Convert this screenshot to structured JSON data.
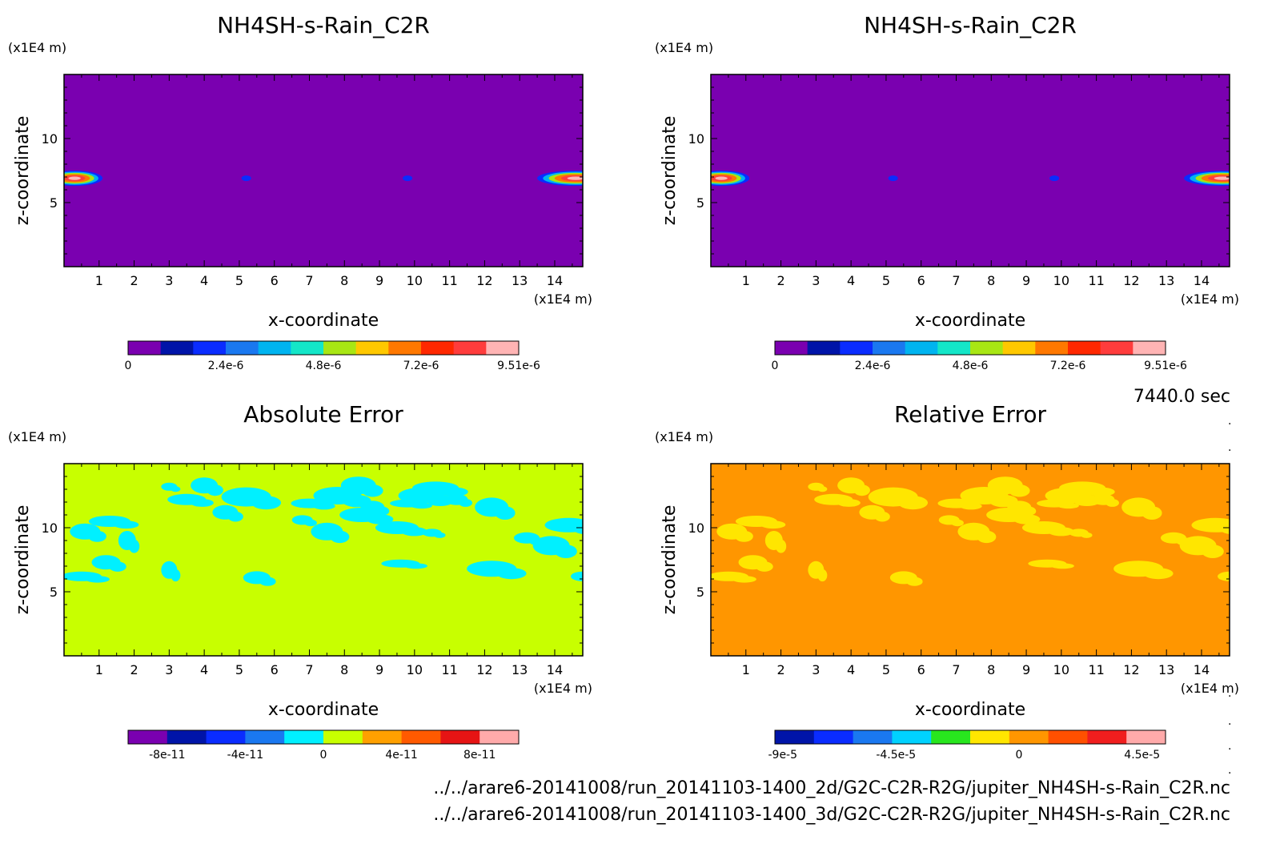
{
  "time_label": "7440.0 sec",
  "file_lines": [
    "../../arare6-20141008/run_20141103-1400_2d/G2C-C2R-R2G/jupiter_NH4SH-s-Rain_C2R.nc",
    "../../arare6-20141008/run_20141103-1400_3d/G2C-C2R-R2G/jupiter_NH4SH-s-Rain_C2R.nc"
  ],
  "chart_data": [
    {
      "type": "heatmap",
      "id": "p1",
      "title": "NH4SH-s-Rain_C2R",
      "xlabel": "x-coordinate",
      "ylabel": "z-coordinate",
      "x_unit": "(x1E4 m)",
      "y_unit": "(x1E4 m)",
      "xlim": [
        0,
        14.8
      ],
      "ylim": [
        0,
        15
      ],
      "x_ticks": [
        "1",
        "2",
        "3",
        "4",
        "5",
        "6",
        "7",
        "8",
        "9",
        "10",
        "11",
        "12",
        "13",
        "14"
      ],
      "y_ticks": [
        "5",
        "10"
      ],
      "background": "#7a00b0",
      "features": [
        {
          "kind": "blob",
          "x": 0.3,
          "y": 6.9,
          "rx": 0.8,
          "ry": 0.6,
          "level": "high"
        },
        {
          "kind": "blob",
          "x": 14.6,
          "y": 6.9,
          "rx": 1.1,
          "ry": 0.6,
          "level": "high"
        },
        {
          "kind": "dot",
          "x": 5.2,
          "y": 6.9
        },
        {
          "kind": "dot",
          "x": 9.8,
          "y": 6.9
        }
      ],
      "colorbar": {
        "colors": [
          "#7a00b0",
          "#0014a8",
          "#0a2cff",
          "#1a78f0",
          "#00b4f0",
          "#14e6c8",
          "#a8e614",
          "#ffc800",
          "#ff7800",
          "#ff2800",
          "#ff3c3c",
          "#ffb4b4"
        ],
        "labels": [
          "0",
          "2.4e-6",
          "4.8e-6",
          "7.2e-6",
          "9.51e-6"
        ]
      }
    },
    {
      "type": "heatmap",
      "id": "p2",
      "title": "NH4SH-s-Rain_C2R",
      "xlabel": "x-coordinate",
      "ylabel": "z-coordinate",
      "x_unit": "(x1E4 m)",
      "y_unit": "(x1E4 m)",
      "xlim": [
        0,
        14.8
      ],
      "ylim": [
        0,
        15
      ],
      "x_ticks": [
        "1",
        "2",
        "3",
        "4",
        "5",
        "6",
        "7",
        "8",
        "9",
        "10",
        "11",
        "12",
        "13",
        "14"
      ],
      "y_ticks": [
        "5",
        "10"
      ],
      "background": "#7a00b0",
      "features": [
        {
          "kind": "blob",
          "x": 0.3,
          "y": 6.9,
          "rx": 0.8,
          "ry": 0.6,
          "level": "high"
        },
        {
          "kind": "blob",
          "x": 14.6,
          "y": 6.9,
          "rx": 1.1,
          "ry": 0.6,
          "level": "high"
        },
        {
          "kind": "dot",
          "x": 5.2,
          "y": 6.9
        },
        {
          "kind": "dot",
          "x": 9.8,
          "y": 6.9
        }
      ],
      "colorbar": {
        "colors": [
          "#7a00b0",
          "#0014a8",
          "#0a2cff",
          "#1a78f0",
          "#00b4f0",
          "#14e6c8",
          "#a8e614",
          "#ffc800",
          "#ff7800",
          "#ff2800",
          "#ff3c3c",
          "#ffb4b4"
        ],
        "labels": [
          "0",
          "2.4e-6",
          "4.8e-6",
          "7.2e-6",
          "9.51e-6"
        ]
      }
    },
    {
      "type": "heatmap",
      "id": "p3",
      "title": "Absolute Error",
      "xlabel": "x-coordinate",
      "ylabel": "z-coordinate",
      "x_unit": "(x1E4 m)",
      "y_unit": "(x1E4 m)",
      "xlim": [
        0,
        14.8
      ],
      "ylim": [
        0,
        15
      ],
      "x_ticks": [
        "1",
        "2",
        "3",
        "4",
        "5",
        "6",
        "7",
        "8",
        "9",
        "10",
        "11",
        "12",
        "13",
        "14"
      ],
      "y_ticks": [
        "5",
        "10"
      ],
      "background": "#c8ff00",
      "patch_color": "#00f0ff",
      "patches": [
        [
          3,
          13.2
        ],
        [
          4,
          13.3
        ],
        [
          3.5,
          12.2
        ],
        [
          5.2,
          12.4
        ],
        [
          4.6,
          11.2
        ],
        [
          7,
          11.9
        ],
        [
          7.8,
          12.5
        ],
        [
          8.8,
          11.6
        ],
        [
          9.8,
          11.9
        ],
        [
          10.2,
          12.5
        ],
        [
          11.2,
          12.2
        ],
        [
          12.2,
          11.6
        ],
        [
          8.5,
          11.0
        ],
        [
          6.8,
          10.6
        ],
        [
          7.5,
          9.7
        ],
        [
          9.5,
          10.0
        ],
        [
          10.5,
          9.6
        ],
        [
          0.6,
          9.7
        ],
        [
          1.3,
          10.5
        ],
        [
          1.8,
          9.0
        ],
        [
          1.2,
          7.3
        ],
        [
          0.5,
          6.2
        ],
        [
          3,
          6.7
        ],
        [
          5.5,
          6.1
        ],
        [
          9.6,
          7.2
        ],
        [
          12.2,
          6.8
        ],
        [
          13.2,
          9.2
        ],
        [
          13.9,
          8.6
        ],
        [
          14.4,
          10.2
        ],
        [
          14.8,
          6.2
        ],
        [
          8.4,
          13.3
        ],
        [
          10.6,
          13.1
        ]
      ],
      "colorbar": {
        "colors": [
          "#7a00b0",
          "#0014a8",
          "#0a2cff",
          "#1a78f0",
          "#00f0ff",
          "#c8ff00",
          "#ffa000",
          "#ff5a00",
          "#e61414",
          "#ffaaaa"
        ],
        "labels": [
          "-8e-11",
          "-4e-11",
          "0",
          "4e-11",
          "8e-11"
        ]
      }
    },
    {
      "type": "heatmap",
      "id": "p4",
      "title": "Relative Error",
      "xlabel": "x-coordinate",
      "ylabel": "z-coordinate",
      "x_unit": "(x1E4 m)",
      "y_unit": "(x1E4 m)",
      "xlim": [
        0,
        14.8
      ],
      "ylim": [
        0,
        15
      ],
      "x_ticks": [
        "1",
        "2",
        "3",
        "4",
        "5",
        "6",
        "7",
        "8",
        "9",
        "10",
        "11",
        "12",
        "13",
        "14"
      ],
      "y_ticks": [
        "5",
        "10"
      ],
      "background": "#ff9600",
      "patch_color": "#ffe600",
      "patches": [
        [
          3,
          13.2
        ],
        [
          4,
          13.3
        ],
        [
          3.5,
          12.2
        ],
        [
          5.2,
          12.4
        ],
        [
          4.6,
          11.2
        ],
        [
          7,
          11.9
        ],
        [
          7.8,
          12.5
        ],
        [
          8.8,
          11.6
        ],
        [
          9.8,
          11.9
        ],
        [
          10.2,
          12.5
        ],
        [
          11.2,
          12.2
        ],
        [
          12.2,
          11.6
        ],
        [
          8.5,
          11.0
        ],
        [
          6.8,
          10.6
        ],
        [
          7.5,
          9.7
        ],
        [
          9.5,
          10.0
        ],
        [
          10.5,
          9.6
        ],
        [
          0.6,
          9.7
        ],
        [
          1.3,
          10.5
        ],
        [
          1.8,
          9.0
        ],
        [
          1.2,
          7.3
        ],
        [
          0.5,
          6.2
        ],
        [
          3,
          6.7
        ],
        [
          5.5,
          6.1
        ],
        [
          9.6,
          7.2
        ],
        [
          12.2,
          6.8
        ],
        [
          13.2,
          9.2
        ],
        [
          13.9,
          8.6
        ],
        [
          14.4,
          10.2
        ],
        [
          14.8,
          6.2
        ],
        [
          8.4,
          13.3
        ],
        [
          10.6,
          13.1
        ]
      ],
      "colorbar": {
        "colors": [
          "#0014a8",
          "#0a2cff",
          "#1a78f0",
          "#00d2ff",
          "#28e61e",
          "#ffe600",
          "#ff9600",
          "#ff5000",
          "#f01e1e",
          "#ffaaaa"
        ],
        "labels": [
          "-9e-5",
          "-4.5e-5",
          "0",
          "4.5e-5"
        ]
      }
    }
  ]
}
